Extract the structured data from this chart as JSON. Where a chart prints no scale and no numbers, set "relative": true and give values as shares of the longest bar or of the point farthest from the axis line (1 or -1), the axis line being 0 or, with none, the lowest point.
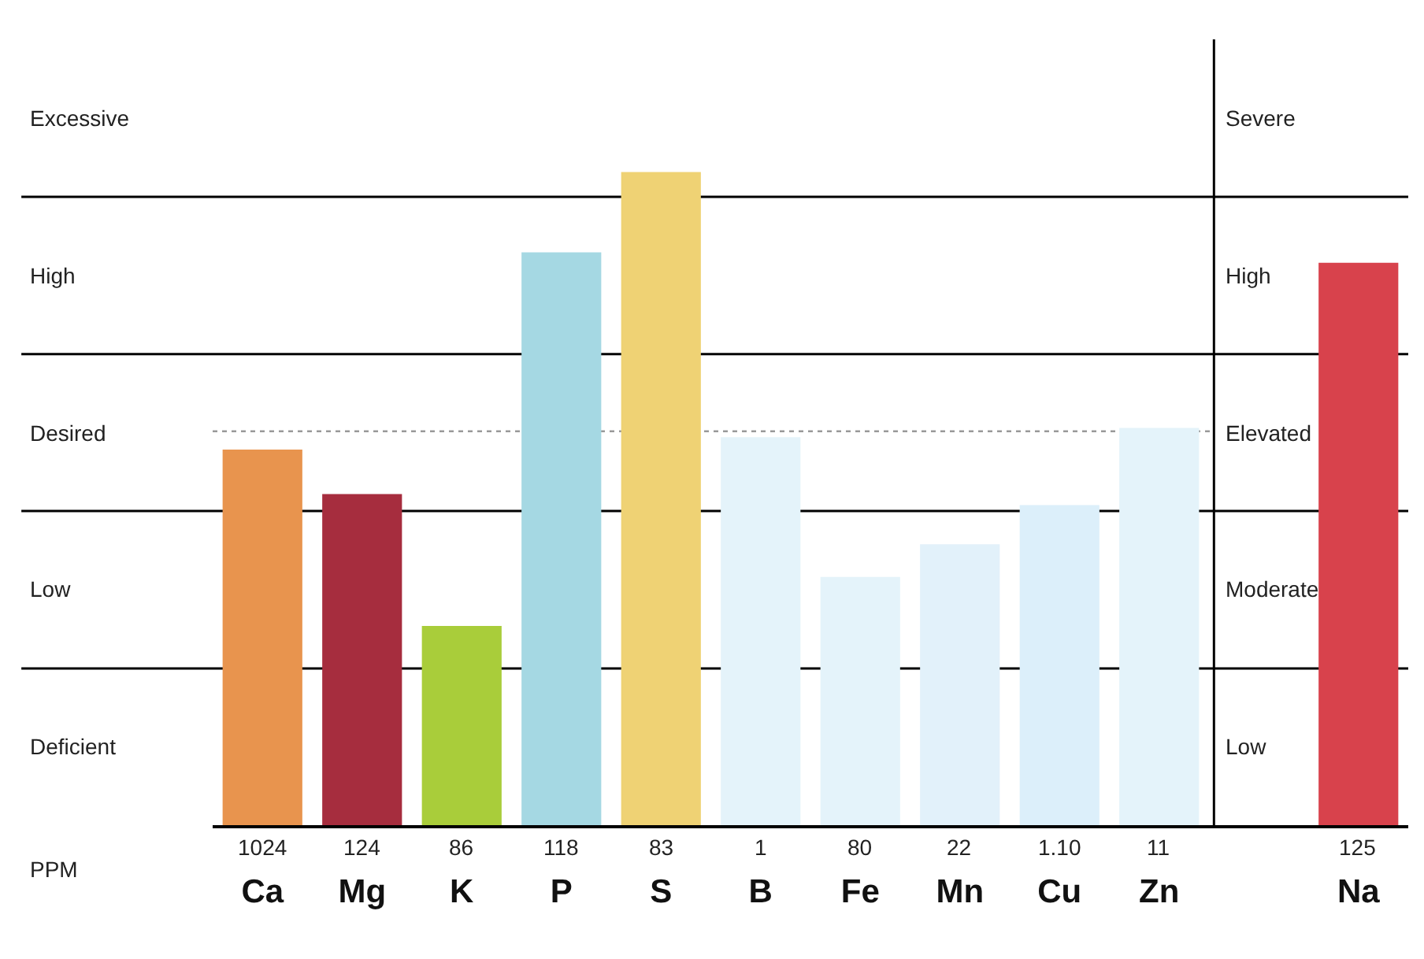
{
  "chart_data": {
    "type": "bar",
    "relative": true,
    "categories": [
      "Ca",
      "Mg",
      "K",
      "P",
      "S",
      "B",
      "Fe",
      "Mn",
      "Cu",
      "Zn",
      null,
      "Na"
    ],
    "values": [
      0.575,
      0.507,
      0.305,
      0.877,
      1,
      0.594,
      0.38,
      0.43,
      0.49,
      0.608,
      null,
      0.861
    ],
    "colors": [
      "#e8944e",
      "#a62d3e",
      "#a9cd3a",
      "#a5d8e3",
      "#efd274",
      "#e4f3fa",
      "#e4f3fa",
      "#e2f1fa",
      "#dceffa",
      "#e4f3fa",
      "#ffffff",
      "#d8424c"
    ],
    "ref_lines": [
      {
        "axis": "y",
        "value": 0.24,
        "color": "#000000"
      },
      {
        "axis": "y",
        "value": 0.481,
        "color": "#000000"
      },
      {
        "axis": "y",
        "value": 0.721,
        "color": "#000000"
      },
      {
        "axis": "y",
        "value": 0.962,
        "color": "#000000"
      },
      {
        "axis": "y",
        "value": 0.603,
        "color": "#999999",
        "line_style": "dotted"
      }
    ],
    "annotations": [
      "Deficient",
      "Low",
      "Desired",
      "High",
      "Excessive",
      "Low",
      "Moderate",
      "Elevated",
      "High",
      "Severe",
      "1024",
      "124",
      "86",
      "118",
      "83",
      "1",
      "80",
      "22",
      "1.10",
      "11",
      "125",
      "PPM"
    ]
  }
}
